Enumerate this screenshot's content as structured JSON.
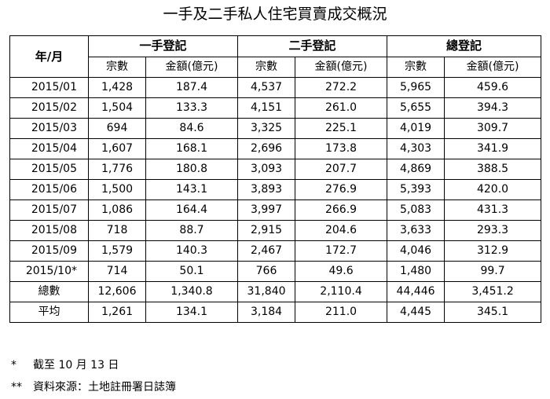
{
  "title": "一手及二手私人住宅買賣成交概況",
  "table": {
    "row_header": "年/月",
    "groups": [
      "一手登記",
      "二手登記",
      "總登記"
    ],
    "sub_headers": [
      "宗數",
      "金額(億元)",
      "宗數",
      "金額(億元)",
      "宗數",
      "金額(億元)"
    ],
    "rows": [
      {
        "label": "2015/01",
        "cells": [
          "1,428",
          "187.4",
          "4,537",
          "272.2",
          "5,965",
          "459.6"
        ]
      },
      {
        "label": "2015/02",
        "cells": [
          "1,504",
          "133.3",
          "4,151",
          "261.0",
          "5,655",
          "394.3"
        ]
      },
      {
        "label": "2015/03",
        "cells": [
          "694",
          "84.6",
          "3,325",
          "225.1",
          "4,019",
          "309.7"
        ]
      },
      {
        "label": "2015/04",
        "cells": [
          "1,607",
          "168.1",
          "2,696",
          "173.8",
          "4,303",
          "341.9"
        ]
      },
      {
        "label": "2015/05",
        "cells": [
          "1,776",
          "180.8",
          "3,093",
          "207.7",
          "4,869",
          "388.5"
        ]
      },
      {
        "label": "2015/06",
        "cells": [
          "1,500",
          "143.1",
          "3,893",
          "276.9",
          "5,393",
          "420.0"
        ]
      },
      {
        "label": "2015/07",
        "cells": [
          "1,086",
          "164.4",
          "3,997",
          "266.9",
          "5,083",
          "431.3"
        ]
      },
      {
        "label": "2015/08",
        "cells": [
          "718",
          "88.7",
          "2,915",
          "204.6",
          "3,633",
          "293.3"
        ]
      },
      {
        "label": "2015/09",
        "cells": [
          "1,579",
          "140.3",
          "2,467",
          "172.7",
          "4,046",
          "312.9"
        ]
      },
      {
        "label": "2015/10*",
        "cells": [
          "714",
          "50.1",
          "766",
          "49.6",
          "1,480",
          "99.7"
        ]
      }
    ],
    "totals": [
      {
        "label": "總數",
        "cells": [
          "12,606",
          "1,340.8",
          "31,840",
          "2,110.4",
          "44,446",
          "3,451.2"
        ]
      },
      {
        "label": "平均",
        "cells": [
          "1,261",
          "134.1",
          "3,184",
          "211.0",
          "4,445",
          "345.1"
        ]
      }
    ]
  },
  "notes": [
    {
      "mark": "*",
      "text": "截至 10 月 13 日"
    },
    {
      "mark": "**",
      "text": "資料來源：土地註冊署日誌簿"
    }
  ]
}
